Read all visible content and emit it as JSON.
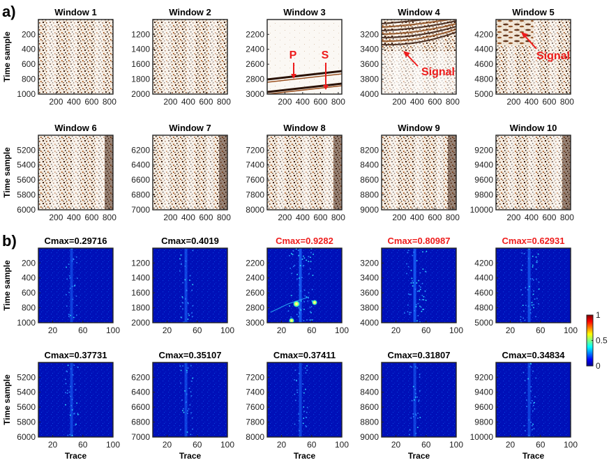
{
  "figure": {
    "panel_labels": [
      "a)",
      "b)"
    ],
    "colorbar": {
      "ticks": [
        "1",
        "0.5",
        "0"
      ],
      "range": [
        0,
        1
      ],
      "colormap": "jet"
    },
    "colors": {
      "highlight": "#ee1c1c",
      "axis": "#222222"
    }
  },
  "chart_data": [
    {
      "panel": "a)",
      "type": "heatmap",
      "ylabel": "Time sample",
      "xlabel": "",
      "xlim": [
        1,
        840
      ],
      "xticks": [
        200,
        400,
        600,
        800
      ],
      "windows": [
        {
          "title": "Window 1",
          "ylim": [
            1,
            1000
          ],
          "yticks": [
            200,
            400,
            600,
            800,
            1000
          ]
        },
        {
          "title": "Window 2",
          "ylim": [
            1001,
            2000
          ],
          "yticks": [
            1200,
            1400,
            1600,
            1800,
            2000
          ]
        },
        {
          "title": "Window 3",
          "ylim": [
            2001,
            3000
          ],
          "yticks": [
            2200,
            2400,
            2600,
            2800,
            3000
          ],
          "annotations": [
            "P",
            "S"
          ]
        },
        {
          "title": "Window 4",
          "ylim": [
            3001,
            4000
          ],
          "yticks": [
            3200,
            3400,
            3600,
            3800,
            4000
          ],
          "annotations": [
            "Signal"
          ]
        },
        {
          "title": "Window 5",
          "ylim": [
            4001,
            5000
          ],
          "yticks": [
            4200,
            4400,
            4600,
            4800,
            5000
          ],
          "annotations": [
            "Signal"
          ]
        },
        {
          "title": "Window 6",
          "ylim": [
            5001,
            6000
          ],
          "yticks": [
            5200,
            5400,
            5600,
            5800,
            6000
          ]
        },
        {
          "title": "Window 7",
          "ylim": [
            6001,
            7000
          ],
          "yticks": [
            6200,
            6400,
            6600,
            6800,
            7000
          ]
        },
        {
          "title": "Window 8",
          "ylim": [
            7001,
            8000
          ],
          "yticks": [
            7200,
            7400,
            7600,
            7800,
            8000
          ]
        },
        {
          "title": "Window 9",
          "ylim": [
            8001,
            9000
          ],
          "yticks": [
            8200,
            8400,
            8600,
            8800,
            9000
          ]
        },
        {
          "title": "Window 10",
          "ylim": [
            9001,
            10000
          ],
          "yticks": [
            9200,
            9400,
            9600,
            9800,
            10000
          ]
        }
      ]
    },
    {
      "panel": "b)",
      "type": "heatmap",
      "ylabel": "Time sample",
      "xlabel": "Trace",
      "xlim": [
        1,
        100
      ],
      "xticks": [
        20,
        60,
        100
      ],
      "clim": [
        0,
        1
      ],
      "windows": [
        {
          "title": "Cmax=0.29716",
          "cmax": 0.29716,
          "highlight": false,
          "ylim": [
            1,
            1000
          ],
          "yticks": [
            200,
            400,
            600,
            800,
            1000
          ]
        },
        {
          "title": "Cmax=0.4019",
          "cmax": 0.4019,
          "highlight": false,
          "ylim": [
            1001,
            2000
          ],
          "yticks": [
            1200,
            1400,
            1600,
            1800,
            2000
          ]
        },
        {
          "title": "Cmax=0.9282",
          "cmax": 0.9282,
          "highlight": true,
          "ylim": [
            2001,
            3000
          ],
          "yticks": [
            2200,
            2400,
            2600,
            2800,
            3000
          ]
        },
        {
          "title": "Cmax=0.80987",
          "cmax": 0.80987,
          "highlight": true,
          "ylim": [
            3001,
            4000
          ],
          "yticks": [
            3200,
            3400,
            3600,
            3800,
            4000
          ]
        },
        {
          "title": "Cmax=0.62931",
          "cmax": 0.62931,
          "highlight": true,
          "ylim": [
            4001,
            5000
          ],
          "yticks": [
            4200,
            4400,
            4600,
            4800,
            5000
          ]
        },
        {
          "title": "Cmax=0.37731",
          "cmax": 0.37731,
          "highlight": false,
          "ylim": [
            5001,
            6000
          ],
          "yticks": [
            5200,
            5400,
            5600,
            5800,
            6000
          ]
        },
        {
          "title": "Cmax=0.35107",
          "cmax": 0.35107,
          "highlight": false,
          "ylim": [
            6001,
            7000
          ],
          "yticks": [
            6200,
            6400,
            6600,
            6800,
            7000
          ]
        },
        {
          "title": "Cmax=0.37411",
          "cmax": 0.37411,
          "highlight": false,
          "ylim": [
            7001,
            8000
          ],
          "yticks": [
            7200,
            7400,
            7600,
            7800,
            8000
          ]
        },
        {
          "title": "Cmax=0.31807",
          "cmax": 0.31807,
          "highlight": false,
          "ylim": [
            8001,
            9000
          ],
          "yticks": [
            8200,
            8400,
            8600,
            8800,
            9000
          ]
        },
        {
          "title": "Cmax=0.34834",
          "cmax": 0.34834,
          "highlight": false,
          "ylim": [
            9001,
            10000
          ],
          "yticks": [
            9200,
            9400,
            9600,
            9800,
            10000
          ]
        }
      ]
    }
  ]
}
